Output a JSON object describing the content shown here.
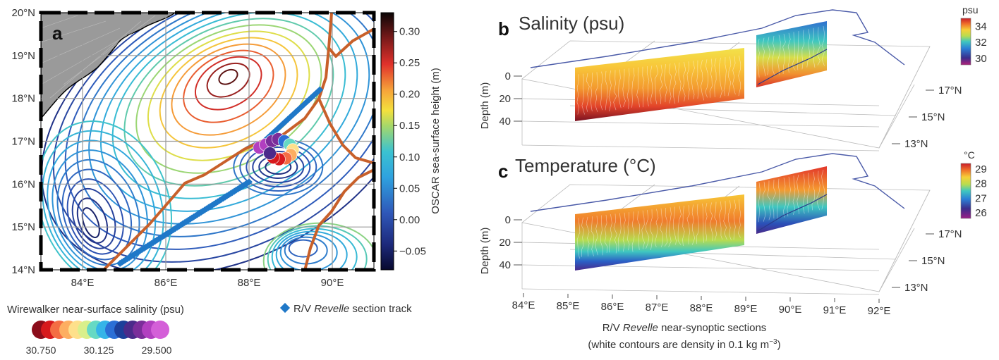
{
  "chart_data": [
    {
      "type": "heatmap",
      "panel": "a",
      "kind": "contour map",
      "x_ticks": [
        "84°E",
        "86°E",
        "88°E",
        "90°E"
      ],
      "y_ticks": [
        "14°N",
        "15°N",
        "16°N",
        "17°N",
        "18°N",
        "19°N",
        "20°N"
      ],
      "xlim": [
        83,
        91
      ],
      "ylim": [
        14,
        20
      ],
      "colorbar": {
        "label": "OSCAR sea-surface height (m)",
        "ticks": [
          "0.30",
          "0.25",
          "0.20",
          "0.15",
          "0.10",
          "0.05",
          "0.00",
          "−0.05"
        ],
        "range": [
          -0.08,
          0.33
        ]
      },
      "high_center": {
        "lon": 87.5,
        "lat": 18.5,
        "value": 0.3
      },
      "low_center": {
        "lon": 84.2,
        "lat": 15.1,
        "value": -0.05
      },
      "wirewalker_legend": {
        "title": "Wirewalker near-surface salinity (psu)",
        "labels": [
          "30.750",
          "30.125",
          "29.500"
        ],
        "colors": [
          "#8b0d1a",
          "#d7191c",
          "#f46d43",
          "#fdae61",
          "#fee08b",
          "#d9ef8b",
          "#66d9c4",
          "#35b4e8",
          "#2b6fd6",
          "#1c3f9a",
          "#4b2a8a",
          "#7b2d9a",
          "#b23fc0",
          "#d45fd8"
        ]
      },
      "track_legend": "R/V Revelle section track",
      "track": [
        [
          84.9,
          14.15
        ],
        [
          88.0,
          16.05
        ]
      ],
      "track2": [
        [
          88.25,
          16.9
        ],
        [
          89.7,
          18.2
        ]
      ],
      "wirewalker_points": [
        {
          "lon": 88.25,
          "lat": 16.85,
          "psu": 29.6
        },
        {
          "lon": 88.4,
          "lat": 16.92,
          "psu": 29.62
        },
        {
          "lon": 88.55,
          "lat": 17.0,
          "psu": 29.65
        },
        {
          "lon": 88.7,
          "lat": 17.05,
          "psu": 29.7
        },
        {
          "lon": 88.85,
          "lat": 17.0,
          "psu": 30.0
        },
        {
          "lon": 88.98,
          "lat": 16.92,
          "psu": 30.2
        },
        {
          "lon": 89.05,
          "lat": 16.8,
          "psu": 30.4
        },
        {
          "lon": 89.0,
          "lat": 16.68,
          "psu": 30.5
        },
        {
          "lon": 88.88,
          "lat": 16.6,
          "psu": 30.6
        },
        {
          "lon": 88.72,
          "lat": 16.58,
          "psu": 30.7
        },
        {
          "lon": 88.58,
          "lat": 16.62,
          "psu": 30.65
        },
        {
          "lon": 88.5,
          "lat": 16.72,
          "psu": 29.8
        }
      ]
    },
    {
      "type": "heatmap",
      "panel": "b",
      "kind": "3D section",
      "title": "Salinity (psu)",
      "colorbar": {
        "label": "psu",
        "ticks": [
          "34",
          "32",
          "30"
        ],
        "range": [
          29.2,
          35
        ]
      },
      "ylabel": "Depth (m)",
      "depth_ticks": [
        "0",
        "20",
        "40"
      ],
      "lat_ticks": [
        "17°N",
        "15°N",
        "13°N"
      ]
    },
    {
      "type": "heatmap",
      "panel": "c",
      "kind": "3D section",
      "title": "Temperature (°C)",
      "colorbar": {
        "label": "°C",
        "ticks": [
          "29",
          "28",
          "27",
          "26"
        ],
        "range": [
          25.6,
          29.4
        ]
      },
      "ylabel": "Depth (m)",
      "depth_ticks": [
        "0",
        "20",
        "40"
      ],
      "lat_ticks": [
        "17°N",
        "15°N",
        "13°N"
      ],
      "x_ticks": [
        "84°E",
        "85°E",
        "86°E",
        "87°E",
        "88°E",
        "89°E",
        "90°E",
        "91°E",
        "92°E"
      ]
    }
  ],
  "caption": {
    "line1_pre": "R/V ",
    "line1_ital": "Revelle",
    "line1_post": " near-synoptic sections",
    "line2": "(white contours are density in 0.1 kg m",
    "line2_sup": "−3",
    "line2_end": ")"
  }
}
